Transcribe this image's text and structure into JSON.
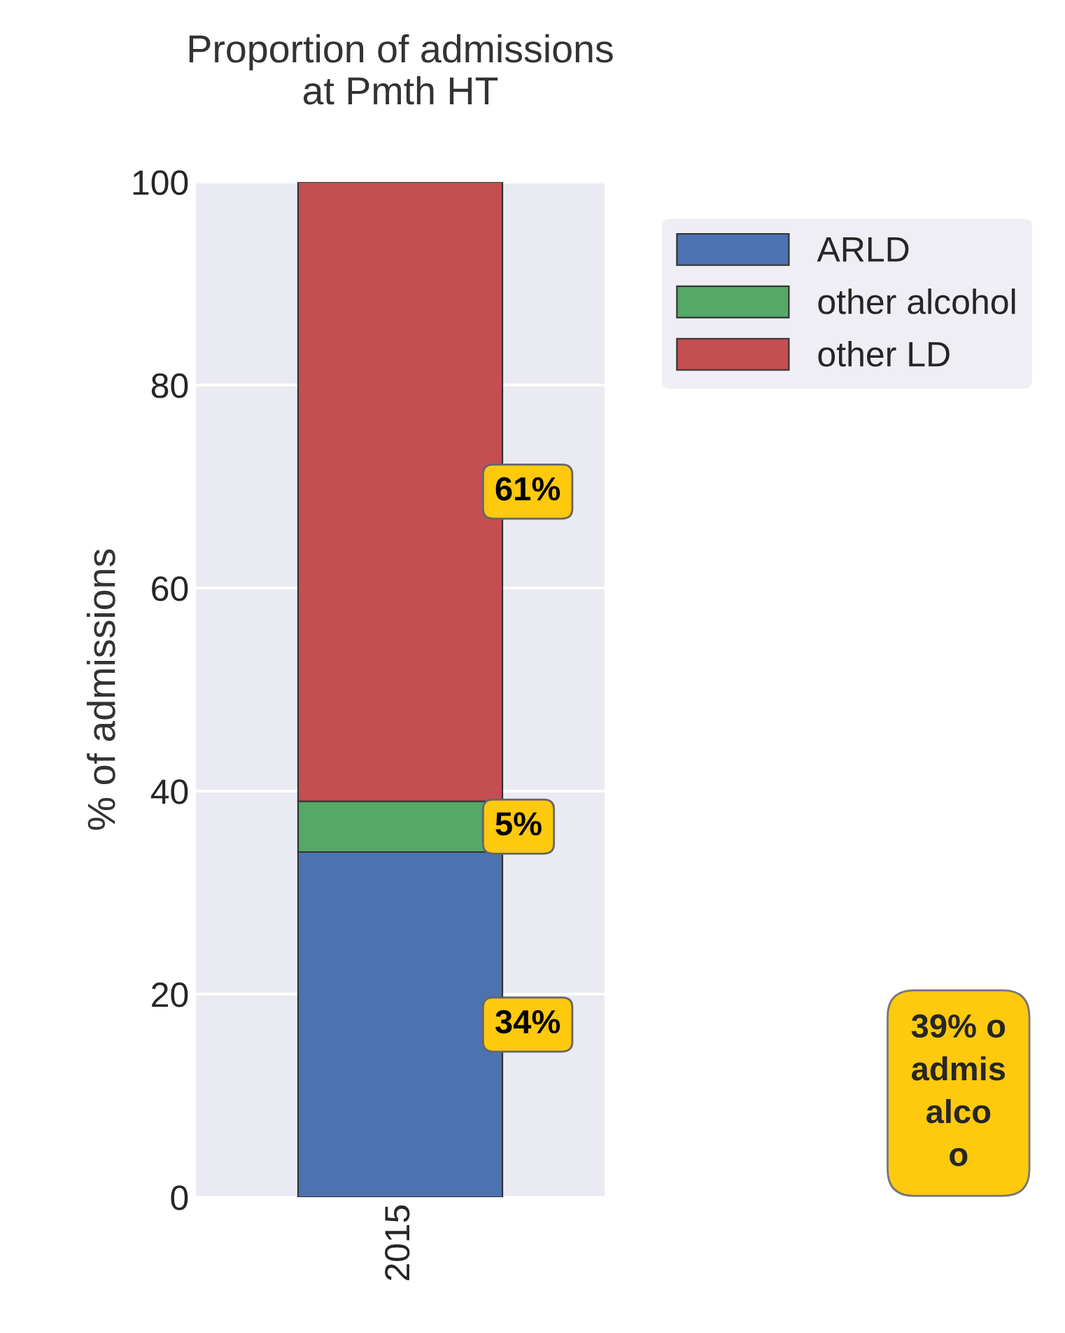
{
  "chart_data": {
    "type": "bar",
    "title": "Proportion of admissions\nat Pmth HT",
    "ylabel": "% of admissions",
    "categories": [
      "2015"
    ],
    "stacked": true,
    "series": [
      {
        "name": "ARLD",
        "color": "#4c72b0",
        "values": [
          34
        ],
        "value_labels": [
          "34%"
        ]
      },
      {
        "name": "other alcohol",
        "color": "#55a868",
        "values": [
          5
        ],
        "value_labels": [
          "5%"
        ]
      },
      {
        "name": "other LD",
        "color": "#c44e52",
        "values": [
          61
        ],
        "value_labels": [
          "61%"
        ]
      }
    ],
    "ylim": [
      0,
      100
    ],
    "yticks": [
      0,
      20,
      40,
      60,
      80,
      100
    ],
    "grid": "y",
    "legend": "top right",
    "annotations": [
      "39% o\nadmis\nalco\no"
    ]
  }
}
